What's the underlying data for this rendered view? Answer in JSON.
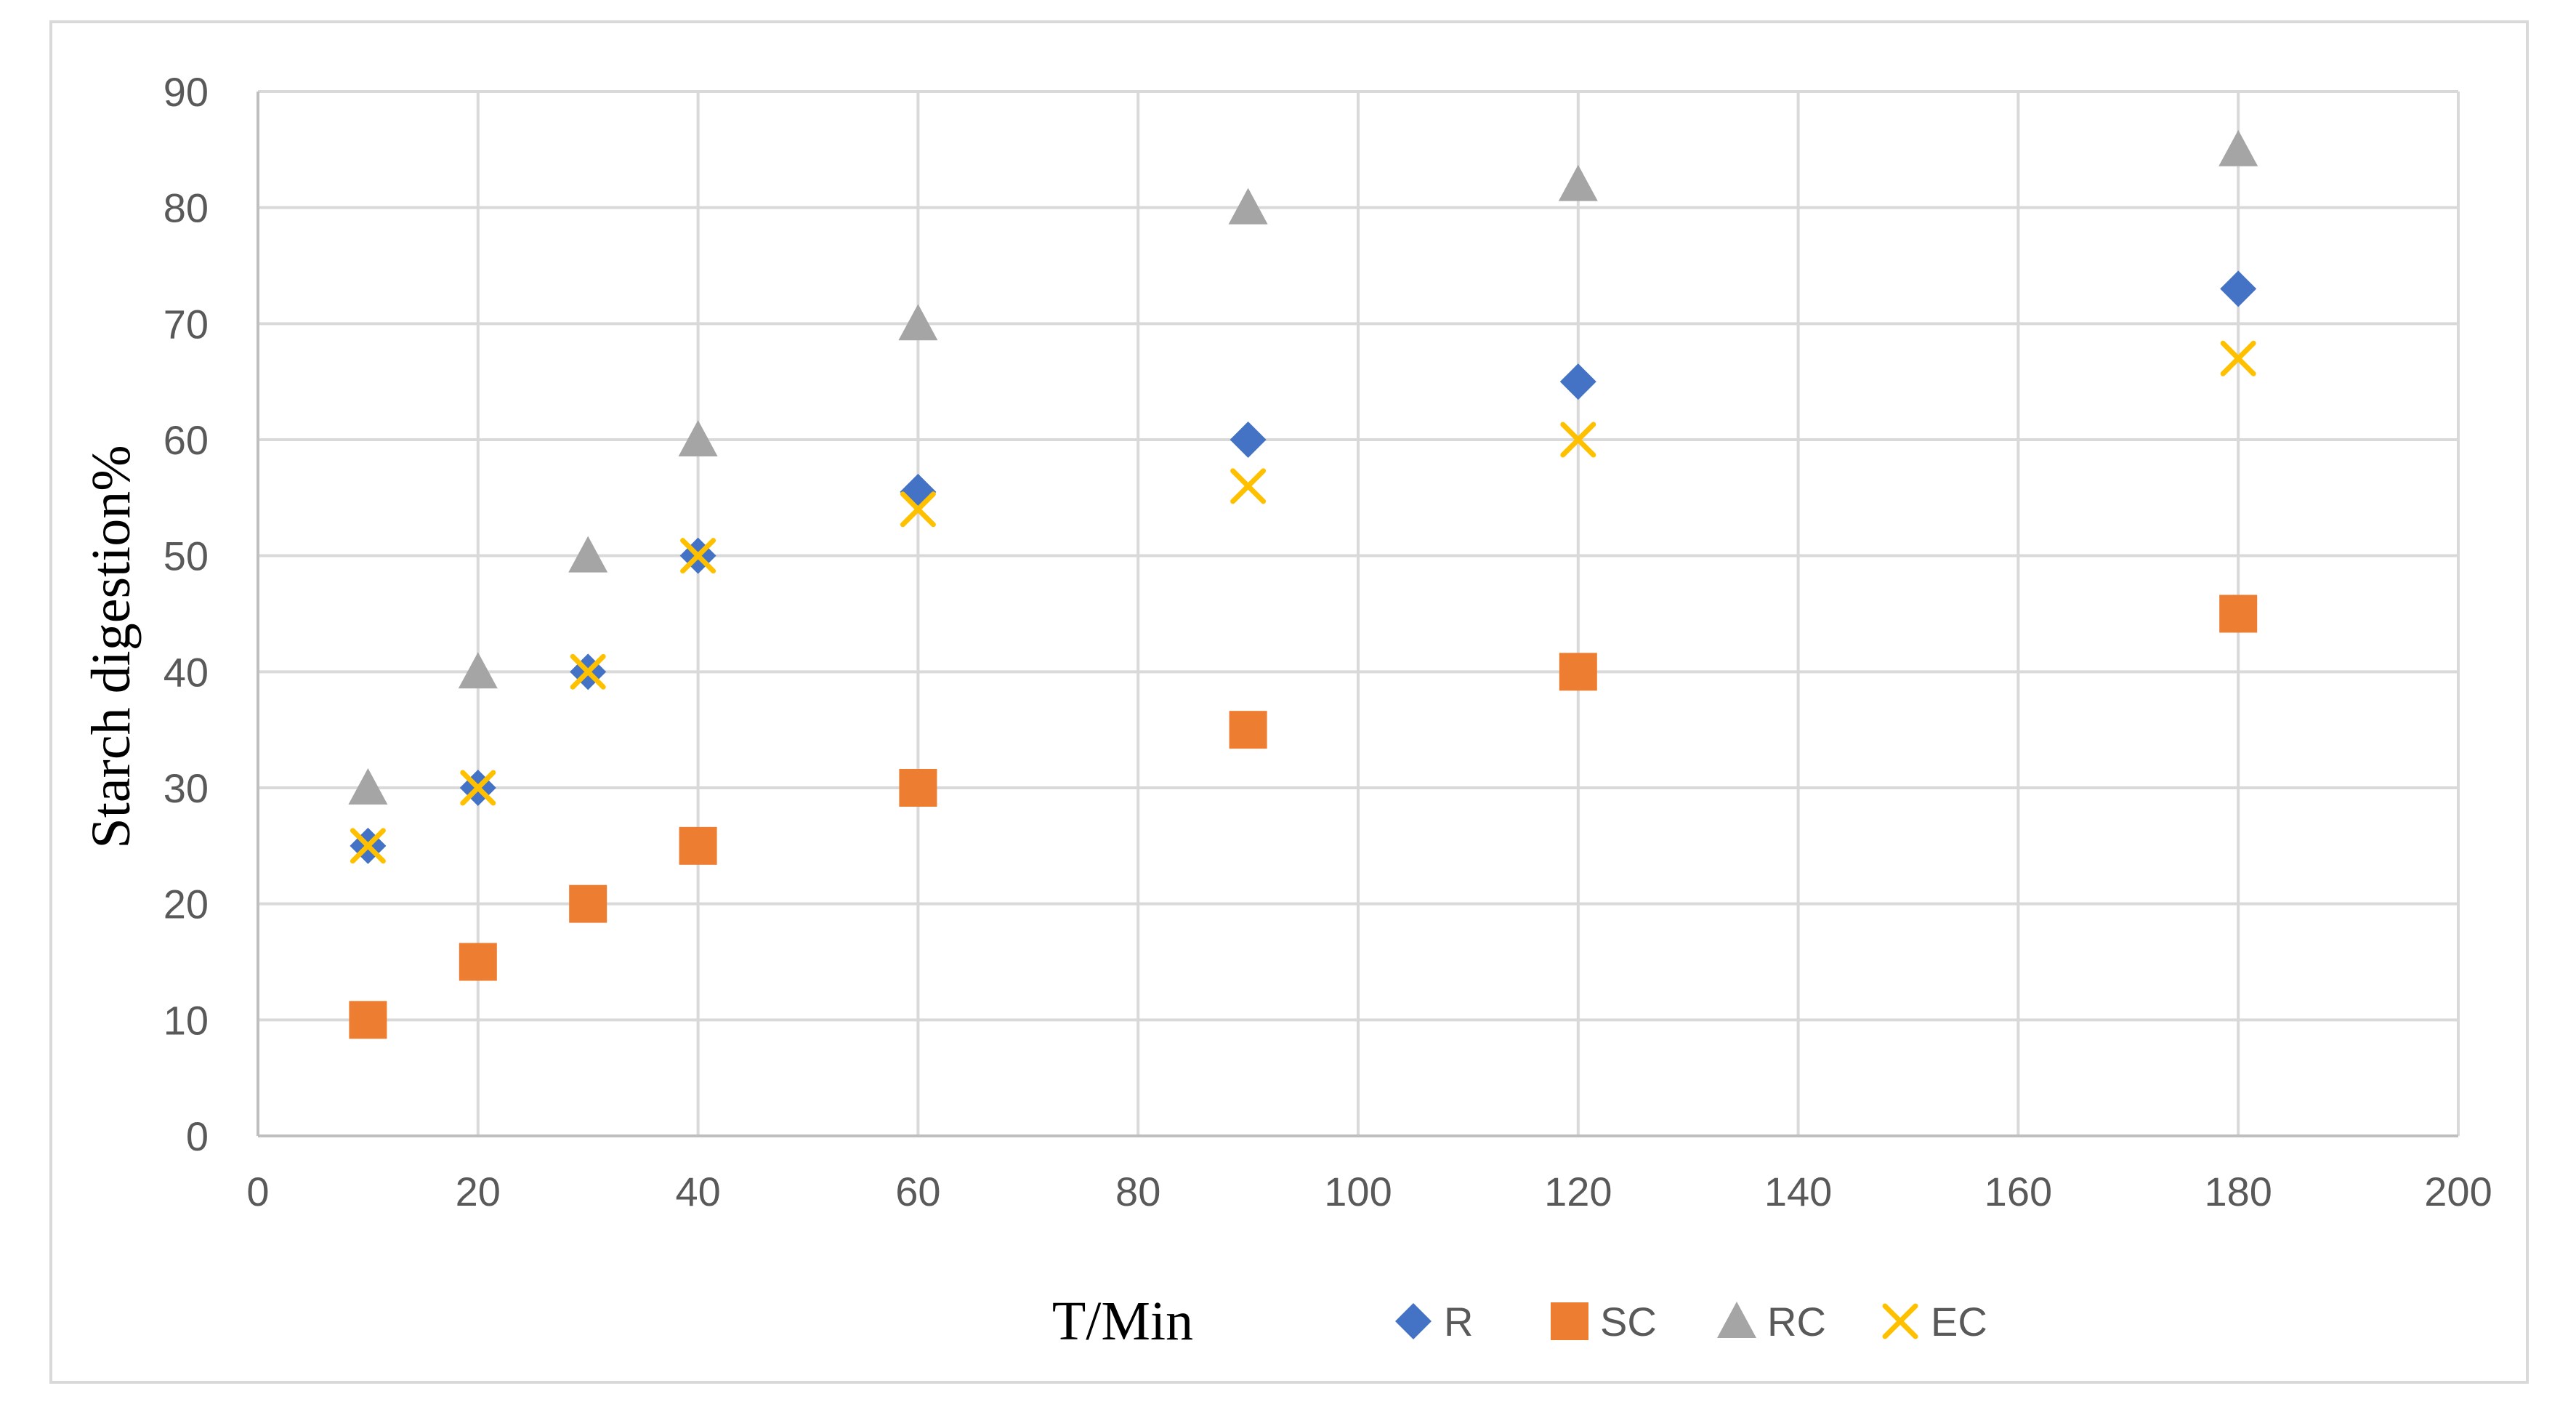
{
  "chart_data": {
    "type": "scatter",
    "title": "",
    "xlabel": "T/Min",
    "ylabel": "Starch digestion%",
    "xlim": [
      0,
      200
    ],
    "ylim": [
      0,
      90
    ],
    "xticks": [
      0,
      20,
      40,
      60,
      80,
      100,
      120,
      140,
      160,
      180,
      200
    ],
    "yticks": [
      0,
      10,
      20,
      30,
      40,
      50,
      60,
      70,
      80,
      90
    ],
    "grid": true,
    "legend_position": "bottom",
    "x": [
      10,
      20,
      30,
      40,
      60,
      90,
      120,
      180
    ],
    "series": [
      {
        "name": "R",
        "marker": "diamond",
        "color": "#4472C4",
        "values": [
          25,
          30,
          40,
          50,
          55.5,
          60,
          65,
          73
        ]
      },
      {
        "name": "SC",
        "marker": "square",
        "color": "#ED7D31",
        "values": [
          10,
          15,
          20,
          25,
          30,
          35,
          40,
          45
        ]
      },
      {
        "name": "RC",
        "marker": "triangle",
        "color": "#A5A5A5",
        "values": [
          30,
          40,
          50,
          60,
          70,
          80,
          82,
          85
        ]
      },
      {
        "name": "EC",
        "marker": "x",
        "color": "#FFC000",
        "values": [
          25,
          30,
          40,
          50,
          54,
          56,
          60,
          67
        ]
      }
    ]
  }
}
